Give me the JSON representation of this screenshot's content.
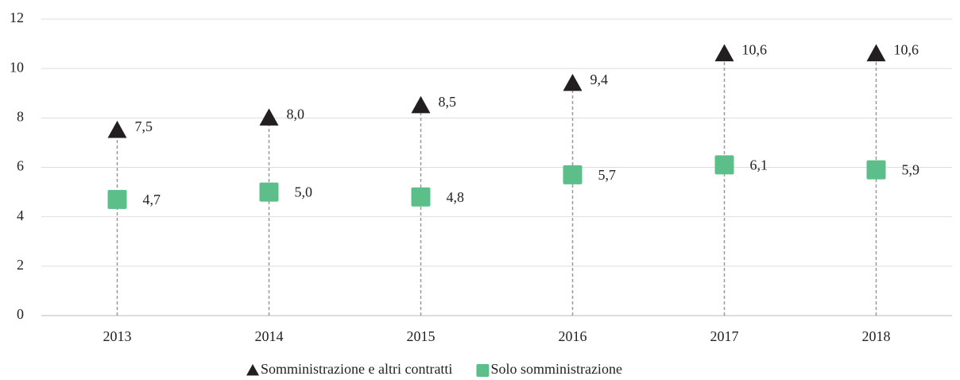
{
  "chart_data": {
    "type": "scatter",
    "categories": [
      "2013",
      "2014",
      "2015",
      "2016",
      "2017",
      "2018"
    ],
    "series": [
      {
        "name": "Somministrazione e altri contratti",
        "color": "#231f20",
        "marker": "triangle",
        "values": [
          7.5,
          8.0,
          8.5,
          9.4,
          10.6,
          10.6
        ],
        "value_labels": [
          "7,5",
          "8,0",
          "8,5",
          "9,4",
          "10,6",
          "10,6"
        ]
      },
      {
        "name": "Solo somministrazione",
        "color": "#5cbf8a",
        "marker": "square",
        "values": [
          4.7,
          5.0,
          4.8,
          5.7,
          6.1,
          5.9
        ],
        "value_labels": [
          "4,7",
          "5,0",
          "4,8",
          "5,7",
          "6,1",
          "5,9"
        ]
      }
    ],
    "ylim": [
      0,
      12
    ],
    "yticks": [
      0,
      2,
      4,
      6,
      8,
      10,
      12
    ],
    "grid": true,
    "drop_lines": true,
    "legend": "bottom"
  }
}
